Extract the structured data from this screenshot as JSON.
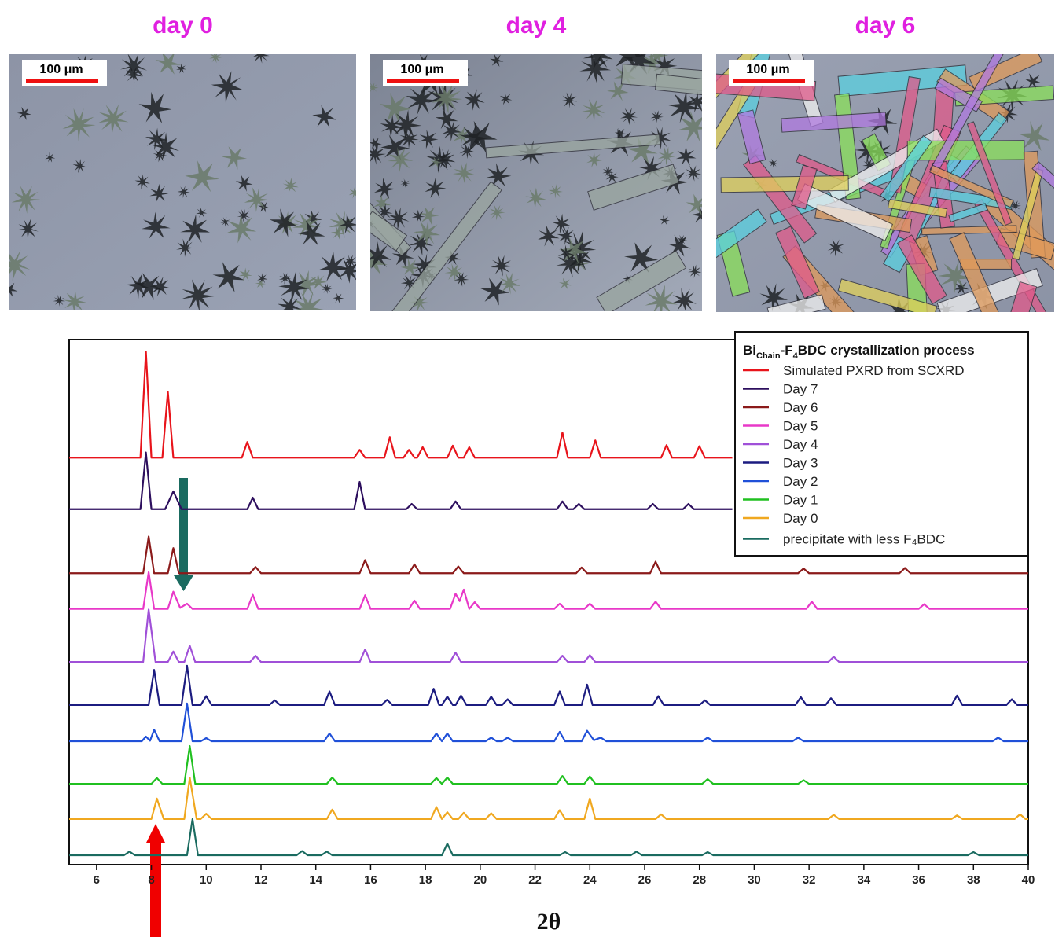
{
  "micrographs": [
    {
      "label": "day 0",
      "scale_bar": "100 μm"
    },
    {
      "label": "day 4",
      "scale_bar": "100 μm"
    },
    {
      "label": "day 6",
      "scale_bar": "100 μm"
    }
  ],
  "chart_data": {
    "type": "line",
    "legend_title": [
      "Bi",
      "Chain",
      "-F",
      "4",
      "BDC crystallization process"
    ],
    "legend": "upper right",
    "xlabel": "2θ",
    "xlim": [
      5,
      40
    ],
    "xticks": [
      6,
      8,
      10,
      12,
      14,
      16,
      18,
      20,
      22,
      24,
      26,
      28,
      30,
      32,
      34,
      36,
      38,
      40
    ],
    "ylim": [
      0,
      100
    ],
    "series": [
      {
        "name": "Simulated PXRD from SCXRD",
        "color": "#e8141b",
        "x": [
          5,
          7.6,
          7.8,
          8.0,
          8.4,
          8.6,
          8.8,
          11.3,
          11.5,
          11.7,
          15.4,
          15.6,
          15.8,
          16.5,
          16.7,
          16.9,
          17.2,
          17.4,
          17.6,
          17.7,
          17.9,
          18.1,
          18.8,
          19.0,
          19.2,
          19.4,
          19.6,
          19.8,
          22.8,
          23.0,
          23.2,
          24.0,
          24.2,
          24.4,
          26.6,
          26.8,
          27.0,
          27.8,
          28.0,
          28.2,
          29.2
        ],
        "values": [
          77.5,
          77.5,
          97.7,
          77.5,
          77.5,
          90.1,
          77.5,
          77.5,
          80.5,
          77.5,
          77.5,
          79,
          77.5,
          77.5,
          81.4,
          77.5,
          77.5,
          79,
          77.5,
          77.5,
          79.5,
          77.5,
          77.5,
          79.8,
          77.5,
          77.5,
          79.5,
          77.5,
          77.5,
          82.3,
          77.5,
          77.5,
          80.8,
          77.5,
          77.5,
          79.9,
          77.5,
          77.5,
          79.7,
          77.5,
          77.5
        ]
      },
      {
        "name": "Day 7",
        "color": "#2d0f5e",
        "x": [
          5,
          7.6,
          7.8,
          8.0,
          8.5,
          8.8,
          9.1,
          11.5,
          11.7,
          11.9,
          15.4,
          15.6,
          15.8,
          17.3,
          17.5,
          17.7,
          18.9,
          19.1,
          19.3,
          22.8,
          23.0,
          23.2,
          23.4,
          23.6,
          23.8,
          26.1,
          26.3,
          26.5,
          27.4,
          27.6,
          27.8,
          29.2
        ],
        "values": [
          67.7,
          67.7,
          78.5,
          67.7,
          67.7,
          71.1,
          67.7,
          67.7,
          69.9,
          67.7,
          67.7,
          72.9,
          67.7,
          67.7,
          68.7,
          67.7,
          67.7,
          69.2,
          67.7,
          67.7,
          69.2,
          67.7,
          67.7,
          68.7,
          67.7,
          67.7,
          68.7,
          67.7,
          67.7,
          68.7,
          67.7,
          67.7
        ]
      },
      {
        "name": "Day 6",
        "color": "#8b1a1a",
        "x": [
          5,
          7.7,
          7.9,
          8.1,
          8.6,
          8.8,
          9.0,
          11.6,
          11.8,
          12.0,
          15.6,
          15.8,
          16.0,
          17.4,
          17.6,
          17.8,
          19.0,
          19.2,
          19.4,
          23.5,
          23.7,
          23.9,
          26.2,
          26.4,
          26.6,
          31.6,
          31.8,
          32.0,
          35.3,
          35.5,
          35.7,
          40
        ],
        "values": [
          55.5,
          55.5,
          62.5,
          55.5,
          55.5,
          60.3,
          55.5,
          55.5,
          56.7,
          55.5,
          55.5,
          58.0,
          55.5,
          55.5,
          57.2,
          55.5,
          55.5,
          56.8,
          55.5,
          55.5,
          56.6,
          55.5,
          55.5,
          57.7,
          55.5,
          55.5,
          56.4,
          55.5,
          55.5,
          56.5,
          55.5,
          55.5
        ]
      },
      {
        "name": "Day 5",
        "color": "#e838c8",
        "x": [
          5,
          7.7,
          7.9,
          8.1,
          8.6,
          8.8,
          9.05,
          9.3,
          9.5,
          11.5,
          11.7,
          11.9,
          15.6,
          15.8,
          16.0,
          17.4,
          17.6,
          17.8,
          18.9,
          19.1,
          19.25,
          19.4,
          19.6,
          19.8,
          20.0,
          22.7,
          22.9,
          23.1,
          23.8,
          24.0,
          24.2,
          26.2,
          26.4,
          26.6,
          31.9,
          32.1,
          32.3,
          36.0,
          36.2,
          36.4,
          40
        ],
        "values": [
          48.7,
          48.7,
          55.7,
          48.7,
          48.7,
          52.0,
          48.9,
          49.7,
          48.7,
          48.7,
          51.4,
          48.7,
          48.7,
          51.3,
          48.7,
          48.7,
          50.3,
          48.7,
          48.7,
          51.6,
          50.2,
          52.4,
          48.7,
          50.0,
          48.7,
          48.7,
          49.7,
          48.7,
          48.7,
          49.7,
          48.7,
          48.7,
          50.1,
          48.7,
          48.7,
          50.1,
          48.7,
          48.7,
          49.6,
          48.7,
          48.7
        ]
      },
      {
        "name": "Day 4",
        "color": "#a050d8",
        "x": [
          5,
          7.7,
          7.9,
          8.15,
          8.6,
          8.8,
          9.0,
          9.2,
          9.4,
          9.6,
          11.6,
          11.8,
          12.0,
          15.6,
          15.8,
          16.0,
          18.9,
          19.1,
          19.3,
          22.8,
          23.0,
          23.2,
          23.8,
          24.0,
          24.2,
          32.7,
          32.9,
          33.1,
          40
        ],
        "values": [
          38.6,
          38.6,
          48.6,
          38.6,
          38.6,
          40.6,
          38.6,
          38.6,
          41.7,
          38.6,
          38.6,
          39.8,
          38.6,
          38.6,
          41.0,
          38.6,
          38.6,
          40.4,
          38.6,
          38.6,
          39.8,
          38.6,
          38.6,
          39.9,
          38.6,
          38.6,
          39.6,
          38.6,
          38.6
        ]
      },
      {
        "name": "Day 3",
        "color": "#1c1c80",
        "x": [
          5,
          7.9,
          8.1,
          8.3,
          9.1,
          9.3,
          9.5,
          9.8,
          10.0,
          10.2,
          12.3,
          12.5,
          12.7,
          14.3,
          14.5,
          14.7,
          16.4,
          16.6,
          16.8,
          18.1,
          18.3,
          18.5,
          18.6,
          18.8,
          19.0,
          19.1,
          19.3,
          19.5,
          20.2,
          20.4,
          20.6,
          20.8,
          21.0,
          21.2,
          22.7,
          22.9,
          23.1,
          23.7,
          23.9,
          24.1,
          26.3,
          26.5,
          26.7,
          28.0,
          28.2,
          28.4,
          31.5,
          31.7,
          31.9,
          32.6,
          32.8,
          33.0,
          37.2,
          37.4,
          37.6,
          39.2,
          39.4,
          39.6,
          40
        ],
        "values": [
          30.4,
          30.4,
          37.1,
          30.4,
          30.4,
          37.9,
          30.4,
          30.4,
          32.1,
          30.4,
          30.4,
          31.3,
          30.4,
          30.4,
          33.0,
          30.4,
          30.4,
          31.4,
          30.4,
          30.4,
          33.5,
          30.4,
          30.4,
          32.0,
          30.4,
          30.4,
          32.2,
          30.4,
          30.4,
          32.0,
          30.4,
          30.4,
          31.5,
          30.4,
          30.4,
          33.0,
          30.4,
          30.4,
          34.3,
          30.4,
          30.4,
          32.1,
          30.4,
          30.4,
          31.3,
          30.4,
          30.4,
          31.9,
          30.4,
          30.4,
          31.7,
          30.4,
          30.4,
          32.2,
          30.4,
          30.4,
          31.5,
          30.4,
          30.4
        ]
      },
      {
        "name": "Day 2",
        "color": "#2050d8",
        "x": [
          5,
          7.65,
          7.8,
          7.95,
          8.1,
          8.3,
          9.1,
          9.3,
          9.5,
          9.8,
          10.0,
          10.2,
          14.3,
          14.5,
          14.7,
          18.2,
          18.4,
          18.6,
          18.8,
          19.0,
          20.2,
          20.4,
          20.6,
          20.8,
          21.0,
          21.2,
          22.7,
          22.9,
          23.1,
          23.7,
          23.9,
          24.15,
          24.4,
          24.6,
          28.1,
          28.3,
          28.5,
          31.4,
          31.6,
          31.8,
          38.7,
          38.9,
          39.1,
          40
        ],
        "values": [
          23.5,
          23.5,
          24.4,
          23.6,
          25.7,
          23.5,
          23.5,
          30.7,
          23.5,
          23.5,
          24.1,
          23.5,
          23.5,
          25.0,
          23.5,
          23.5,
          25.0,
          23.5,
          25.0,
          23.5,
          23.5,
          24.2,
          23.5,
          23.5,
          24.2,
          23.5,
          23.5,
          25.3,
          23.5,
          23.5,
          25.5,
          23.7,
          24.2,
          23.5,
          23.5,
          24.2,
          23.5,
          23.5,
          24.2,
          23.5,
          23.5,
          24.2,
          23.5,
          23.5
        ]
      },
      {
        "name": "Day 1",
        "color": "#20c020",
        "x": [
          5,
          8.0,
          8.2,
          8.4,
          9.2,
          9.4,
          9.6,
          14.4,
          14.6,
          14.8,
          18.2,
          18.4,
          18.6,
          18.8,
          19.0,
          22.8,
          23.0,
          23.2,
          23.8,
          24.0,
          24.2,
          28.1,
          28.3,
          28.5,
          31.6,
          31.8,
          32.0,
          40
        ],
        "values": [
          15.4,
          15.4,
          16.5,
          15.4,
          15.4,
          22.6,
          15.4,
          15.4,
          16.6,
          15.4,
          15.4,
          16.5,
          15.4,
          16.6,
          15.4,
          15.4,
          16.9,
          15.4,
          15.4,
          16.8,
          15.4,
          15.4,
          16.3,
          15.4,
          15.4,
          16.1,
          15.4,
          15.4
        ]
      },
      {
        "name": "Day 0",
        "color": "#f0a820",
        "x": [
          5,
          8.0,
          8.2,
          8.45,
          9.2,
          9.4,
          9.65,
          9.8,
          10.0,
          10.2,
          14.4,
          14.6,
          14.8,
          18.2,
          18.4,
          18.6,
          18.8,
          19.0,
          19.2,
          19.4,
          19.6,
          20.2,
          20.4,
          20.6,
          22.7,
          22.9,
          23.1,
          23.8,
          24.0,
          24.2,
          26.4,
          26.6,
          26.8,
          32.7,
          32.9,
          33.1,
          37.2,
          37.4,
          37.6,
          39.5,
          39.7,
          39.9,
          40
        ],
        "values": [
          8.7,
          8.7,
          12.6,
          8.7,
          8.7,
          16.6,
          8.7,
          8.7,
          9.7,
          8.7,
          8.7,
          10.5,
          8.7,
          8.7,
          11.0,
          8.7,
          10.0,
          8.7,
          8.7,
          9.9,
          8.7,
          8.7,
          9.8,
          8.7,
          8.7,
          10.4,
          8.7,
          8.7,
          12.6,
          8.7,
          8.7,
          9.6,
          8.7,
          8.7,
          9.5,
          8.7,
          8.7,
          9.4,
          8.7,
          8.7,
          9.6,
          8.7,
          8.7
        ]
      },
      {
        "name": "precipitate with less F₄BDC",
        "color": "#1a6b60",
        "x": [
          5,
          7.0,
          7.2,
          7.4,
          9.3,
          9.5,
          9.7,
          13.3,
          13.5,
          13.7,
          14.2,
          14.4,
          14.6,
          18.6,
          18.8,
          19.0,
          22.9,
          23.1,
          23.3,
          25.5,
          25.7,
          25.9,
          28.1,
          28.3,
          28.5,
          37.8,
          38.0,
          38.2,
          40
        ],
        "values": [
          1.8,
          1.8,
          2.5,
          1.8,
          1.8,
          8.7,
          1.8,
          1.8,
          2.6,
          1.8,
          1.8,
          2.5,
          1.8,
          1.8,
          4.0,
          1.8,
          1.8,
          2.4,
          1.8,
          1.8,
          2.5,
          1.8,
          1.8,
          2.4,
          1.8,
          1.8,
          2.4,
          1.8,
          1.8
        ]
      }
    ]
  }
}
